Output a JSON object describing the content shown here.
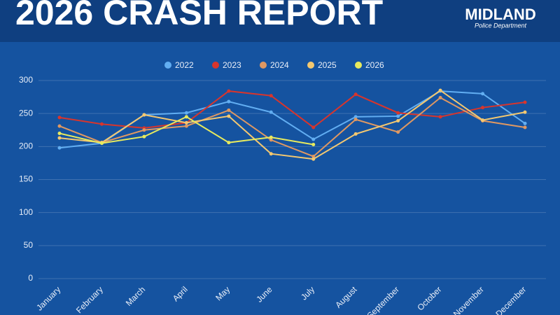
{
  "header": {
    "title": "2026 CRASH REPORT",
    "logo": "MIDLAND",
    "logo_subtitle": "Police Department"
  },
  "chart_data": {
    "type": "line",
    "categories": [
      "January",
      "February",
      "March",
      "April",
      "May",
      "June",
      "July",
      "August",
      "September",
      "October",
      "November",
      "December"
    ],
    "series": [
      {
        "name": "2022",
        "color": "#62aef2",
        "values": [
          198,
          205,
          248,
          251,
          268,
          252,
          211,
          245,
          246,
          284,
          280,
          235
        ]
      },
      {
        "name": "2023",
        "color": "#d8352c",
        "values": [
          244,
          234,
          228,
          236,
          284,
          277,
          229,
          279,
          251,
          245,
          259,
          267
        ]
      },
      {
        "name": "2024",
        "color": "#df9862",
        "values": [
          231,
          206,
          225,
          231,
          255,
          210,
          185,
          241,
          222,
          274,
          239,
          229
        ]
      },
      {
        "name": "2025",
        "color": "#f4c870",
        "values": [
          213,
          206,
          248,
          236,
          246,
          189,
          181,
          219,
          239,
          285,
          240,
          252
        ]
      },
      {
        "name": "2026",
        "color": "#e7ea5e",
        "values": [
          220,
          205,
          215,
          245,
          206,
          214,
          203,
          null,
          null,
          null,
          null,
          null
        ]
      }
    ],
    "ylim": [
      0,
      300
    ],
    "yticks": [
      0,
      50,
      100,
      150,
      200,
      250,
      300
    ],
    "grid": true,
    "legend": "top"
  }
}
